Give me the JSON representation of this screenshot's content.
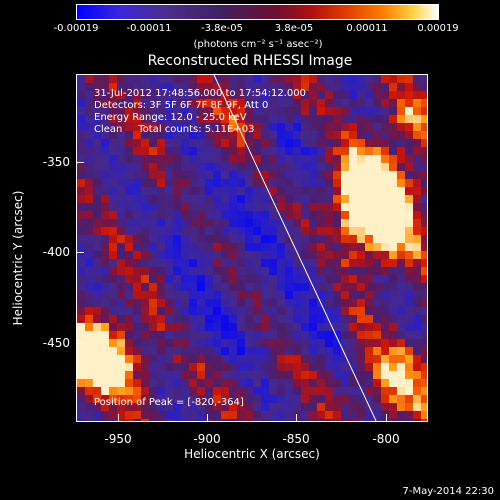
{
  "colorbar": {
    "ticks": [
      "-0.00019",
      "-0.00011",
      "-3.8e-05",
      "3.8e-05",
      "0.00011",
      "0.00019"
    ],
    "units": "(photons cm⁻² s⁻¹ asec⁻²)",
    "colors": [
      "#0000ff",
      "#4b2e8c",
      "#6a1030",
      "#e04000",
      "#ff8000",
      "#ffffff"
    ]
  },
  "plot": {
    "title": "Reconstructed RHESSI Image",
    "info_lines": [
      "31-Jul-2012 17:48:56.000 to 17:54:12.000",
      "Detectors: 3F 5F 6F 7F 8F 9F, Att 0",
      "Energy Range: 12.0 - 25.0 keV",
      "Clean     Total counts: 5.11E+03"
    ],
    "peak_label": "Position of Peak = [-820,-364]",
    "x_axis": {
      "label": "Heliocentric X (arcsec)",
      "ticks": [
        "-950",
        "-900",
        "-850",
        "-800"
      ],
      "range": [
        -972,
        -778
      ]
    },
    "y_axis": {
      "label": "Heliocentric Y (arcsec)",
      "ticks": [
        "-350",
        "-400",
        "-450"
      ],
      "range": [
        -493,
        -300
      ]
    },
    "limb_color": "#ffffff"
  },
  "footer": {
    "date": "7-May-2014 22:30"
  }
}
